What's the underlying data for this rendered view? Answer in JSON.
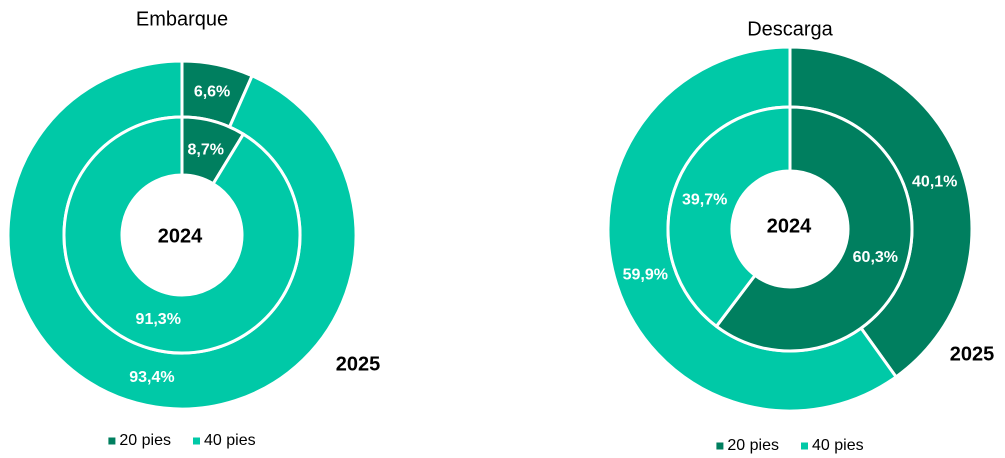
{
  "chart_data": [
    {
      "type": "donut",
      "title": "Embarque",
      "categories": [
        "20 pies",
        "40 pies"
      ],
      "colors": [
        "#007f5f",
        "#00c9a7"
      ],
      "rings": [
        {
          "name": "2025",
          "values": [
            6.6,
            93.4
          ],
          "value_labels": [
            "6,6%",
            "93,4%"
          ]
        },
        {
          "name": "2024",
          "values": [
            8.7,
            91.3
          ],
          "value_labels": [
            "8,7%",
            "91,3%"
          ]
        }
      ]
    },
    {
      "type": "donut",
      "title": "Descarga",
      "categories": [
        "20 pies",
        "40 pies"
      ],
      "colors": [
        "#007f5f",
        "#00c9a7"
      ],
      "rings": [
        {
          "name": "2025",
          "values": [
            40.1,
            59.9
          ],
          "value_labels": [
            "40,1%",
            "59,9%"
          ]
        },
        {
          "name": "2024",
          "values": [
            60.3,
            39.7
          ],
          "value_labels": [
            "60,3%",
            "39,7%"
          ]
        }
      ]
    }
  ]
}
